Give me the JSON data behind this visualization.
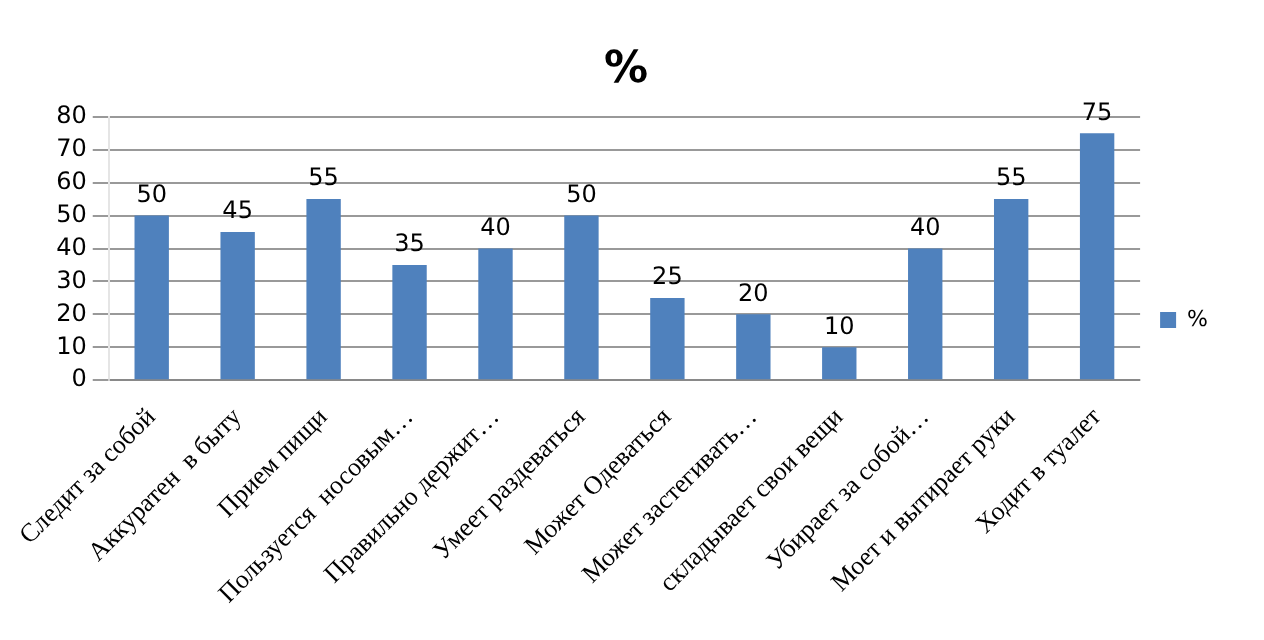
{
  "chart_data": {
    "type": "bar",
    "title": "%",
    "categories": [
      "Следит за собой",
      "Аккуратен  в быту",
      "Прием пищи",
      "Пользуется  носовым…",
      "Правильно держит…",
      "Умеет раздеваться",
      "Может Одеваться",
      "Может застегивать…",
      "складывает свои вещи",
      "Убирает за собой…",
      "Моет и вытирает руки",
      "Ходит в туалет"
    ],
    "series": [
      {
        "name": "%",
        "color": "#4f81bd",
        "values": [
          50,
          45,
          55,
          35,
          40,
          50,
          25,
          20,
          10,
          40,
          55,
          75
        ]
      }
    ],
    "ylim": [
      0,
      80
    ],
    "yticks": [
      0,
      10,
      20,
      30,
      40,
      50,
      60,
      70,
      80
    ],
    "grid": "y",
    "legend": "right",
    "data_labels": true
  }
}
